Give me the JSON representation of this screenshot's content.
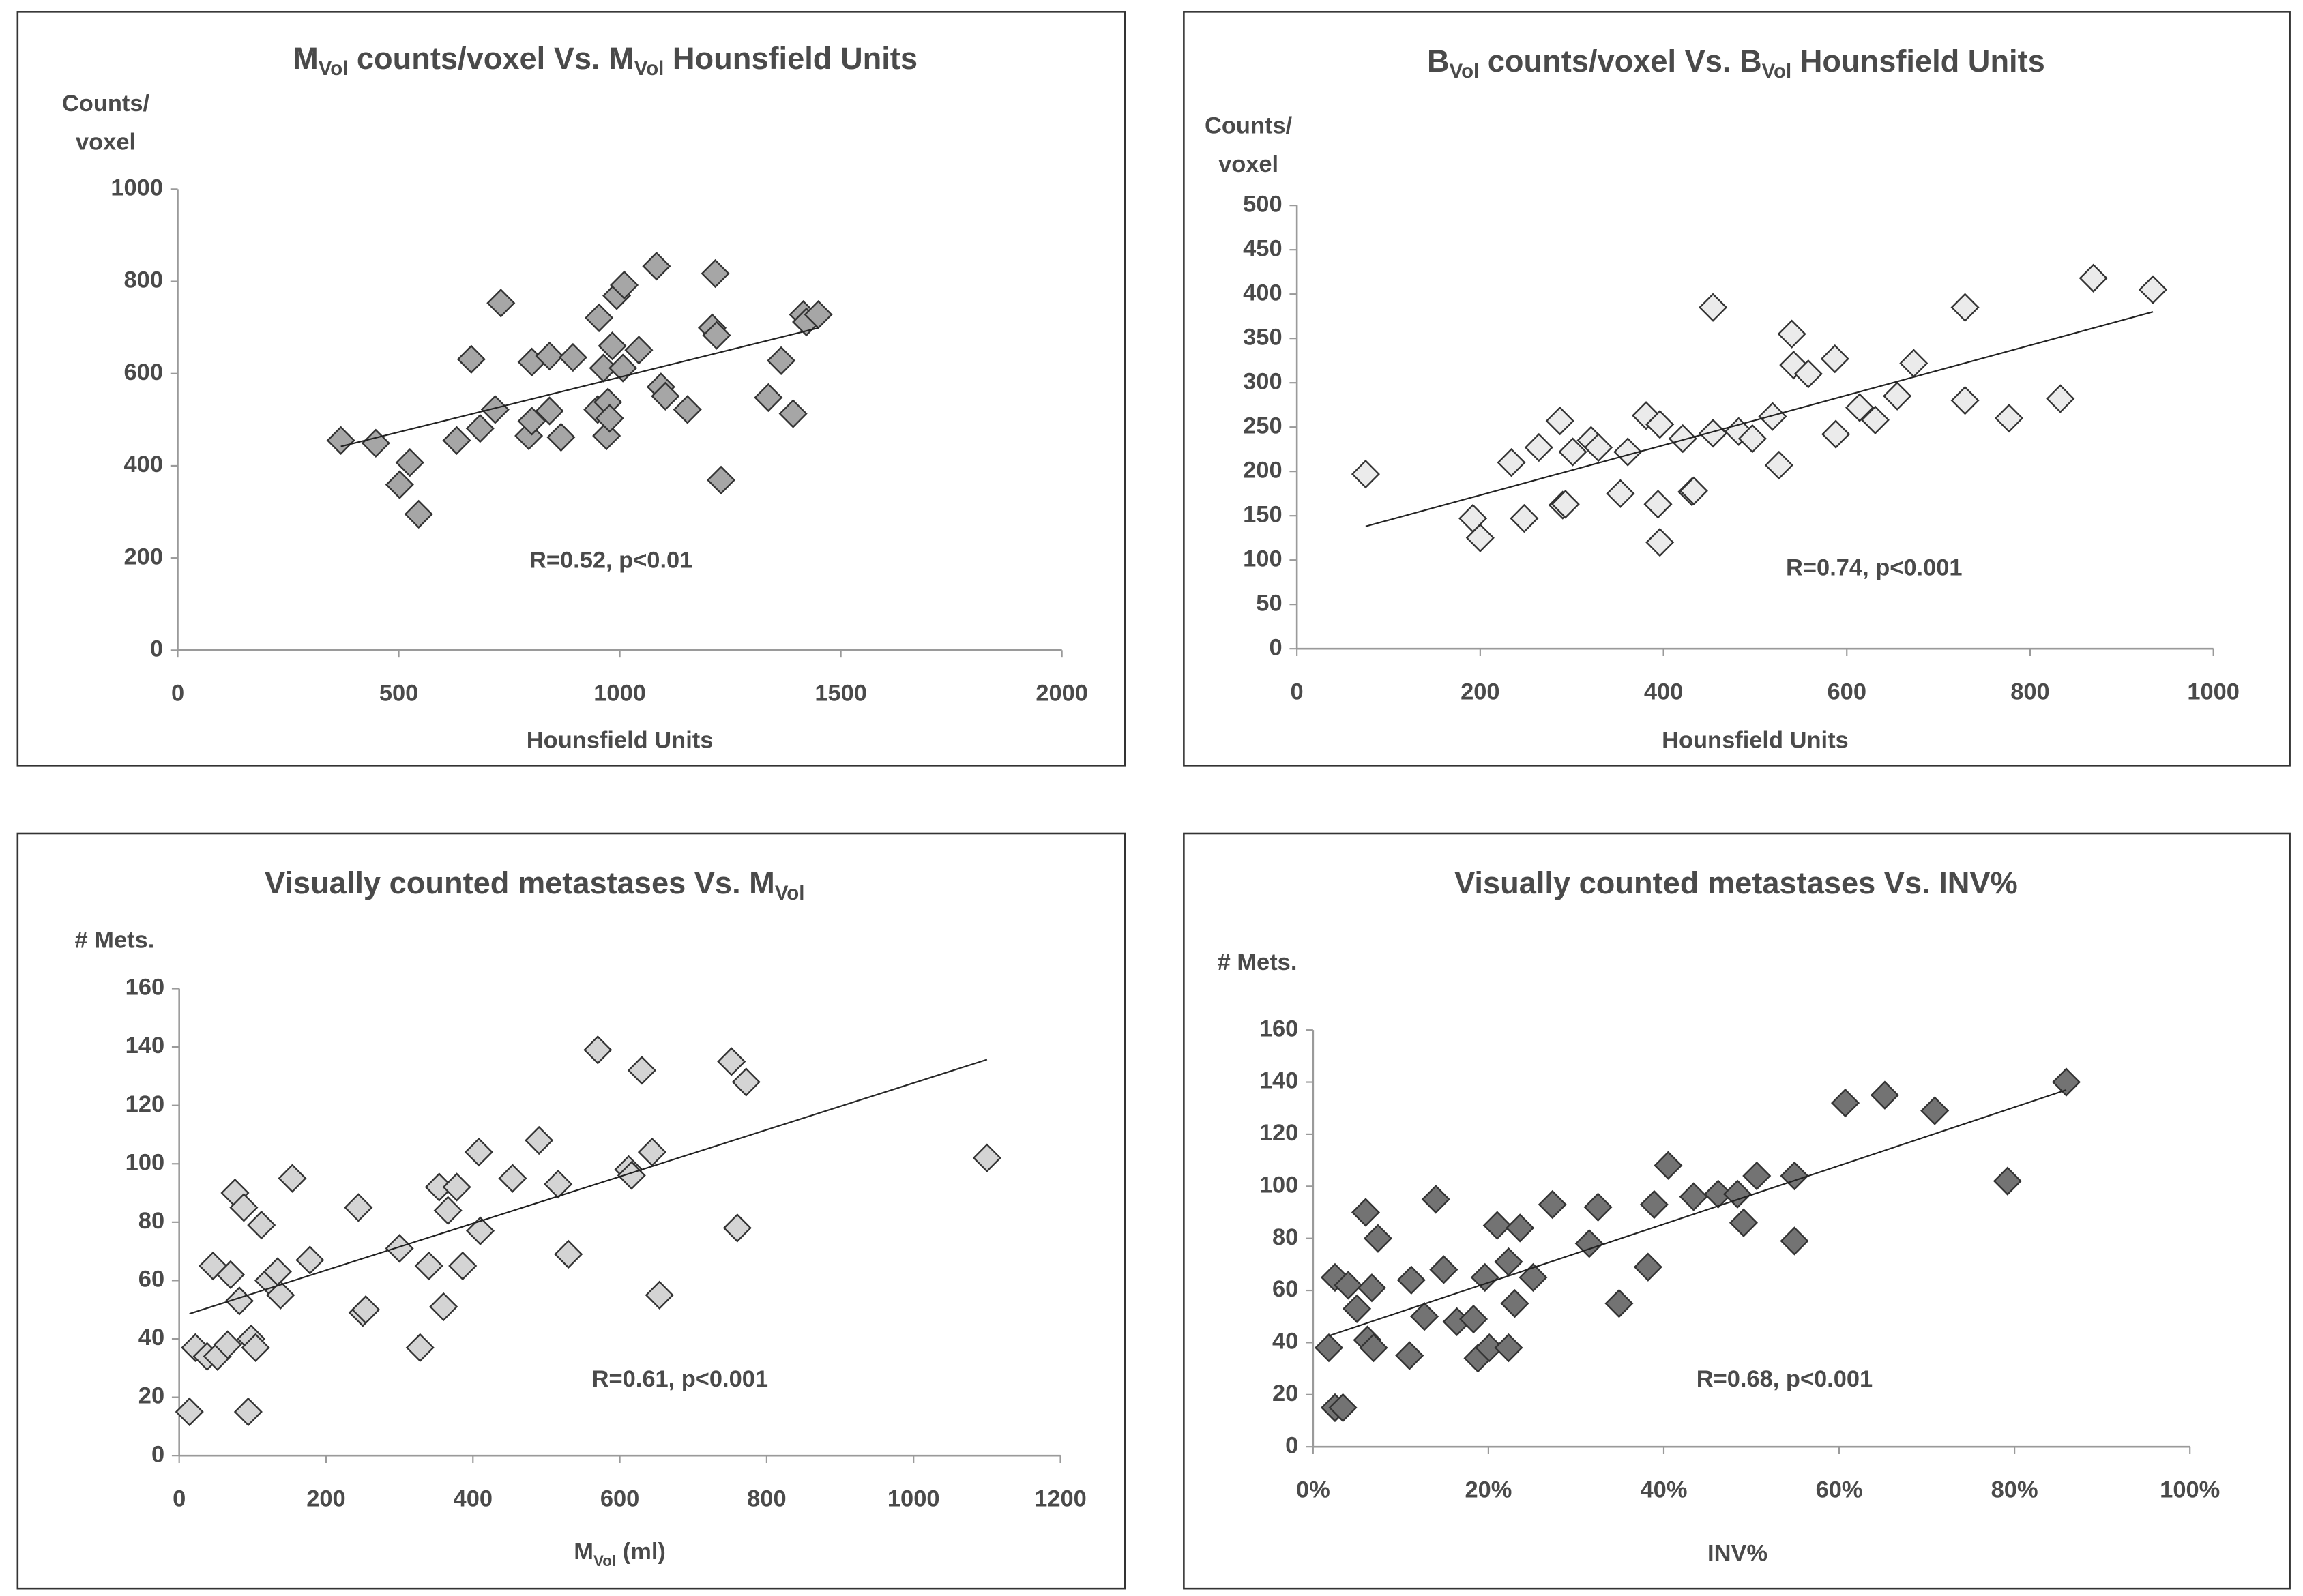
{
  "chart_data": [
    {
      "type": "scatter",
      "title": [
        {
          "text": "M"
        },
        {
          "text": "Vol",
          "sub": true
        },
        {
          "text": " counts/voxel Vs. M"
        },
        {
          "text": "Vol",
          "sub": true
        },
        {
          "text": "  Hounsfield Units"
        }
      ],
      "ylabel": [
        "Counts/",
        "voxel"
      ],
      "xlabel": [
        {
          "text": "Hounsfield Units"
        }
      ],
      "annotation": "R=0.52, p<0.01",
      "color": "#a6a6a6",
      "xlim": [
        0,
        2000
      ],
      "ylim": [
        0,
        1000
      ],
      "xticks": [
        0,
        500,
        1000,
        1500,
        2000
      ],
      "yticks": [
        0,
        200,
        400,
        600,
        800,
        1000
      ],
      "x": [
        369,
        448,
        502,
        525,
        545,
        631,
        664,
        684,
        718,
        731,
        794,
        801,
        801,
        841,
        841,
        867,
        894,
        953,
        950,
        963,
        970,
        973,
        977,
        983,
        993,
        1010,
        1007,
        1043,
        1083,
        1093,
        1103,
        1153,
        1209,
        1216,
        1219,
        1229,
        1336,
        1365,
        1392,
        1415,
        1422,
        1449
      ],
      "y": [
        455,
        449,
        359,
        407,
        295,
        455,
        631,
        481,
        522,
        753,
        465,
        497,
        625,
        638,
        519,
        462,
        635,
        721,
        522,
        612,
        465,
        538,
        503,
        660,
        769,
        792,
        612,
        651,
        833,
        571,
        551,
        522,
        699,
        817,
        683,
        369,
        548,
        628,
        513,
        728,
        712,
        728
      ],
      "trendline": {
        "x": [
          369,
          1449
        ],
        "y": [
          442,
          699
        ]
      }
    },
    {
      "type": "scatter",
      "title": [
        {
          "text": "B"
        },
        {
          "text": "Vol",
          "sub": true
        },
        {
          "text": " counts/voxel Vs. B"
        },
        {
          "text": "Vol",
          "sub": true
        },
        {
          "text": "  Hounsfield Units"
        }
      ],
      "ylabel": [
        "Counts/",
        "voxel"
      ],
      "xlabel": [
        {
          "text": "Hounsfield Units"
        }
      ],
      "annotation": "R=0.74, p<0.001",
      "color": "#ebebeb",
      "xlim": [
        0,
        1000
      ],
      "ylim": [
        0,
        500
      ],
      "xticks": [
        0,
        200,
        400,
        600,
        800,
        1000
      ],
      "yticks": [
        0,
        50,
        100,
        150,
        200,
        250,
        300,
        350,
        400,
        450,
        500
      ],
      "x": [
        75,
        192,
        200,
        234,
        248,
        264,
        287,
        290,
        293,
        301,
        321,
        329,
        353,
        361,
        381,
        396,
        394,
        396,
        421,
        431,
        433,
        454,
        454,
        482,
        497,
        519,
        526,
        540,
        542,
        558,
        587,
        588,
        614,
        631,
        655,
        673,
        729,
        729,
        777,
        833,
        869,
        934
      ],
      "y": [
        197,
        147,
        125,
        210,
        147,
        227,
        257,
        162,
        163,
        222,
        235,
        227,
        175,
        222,
        263,
        253,
        163,
        120,
        237,
        177,
        178,
        385,
        243,
        245,
        237,
        262,
        207,
        355,
        320,
        310,
        327,
        242,
        272,
        258,
        285,
        322,
        385,
        280,
        260,
        282,
        418,
        405
      ],
      "trendline": {
        "x": [
          75,
          934
        ],
        "y": [
          138,
          380
        ]
      }
    },
    {
      "type": "scatter",
      "title": [
        {
          "text": "Visually counted metastases Vs. M"
        },
        {
          "text": "Vol",
          "sub": true
        }
      ],
      "ylabel": [
        "# Mets."
      ],
      "xlabel": [
        {
          "text": "M"
        },
        {
          "text": "Vol",
          "sub": true
        },
        {
          "text": " (ml)"
        }
      ],
      "annotation": "R=0.61, p<0.001",
      "color": "#d4d4d4",
      "xlim": [
        0,
        1200
      ],
      "ylim": [
        0,
        160
      ],
      "xticks": [
        0,
        200,
        400,
        600,
        800,
        1000,
        1200
      ],
      "yticks": [
        0,
        20,
        40,
        60,
        80,
        100,
        120,
        140,
        160
      ],
      "x": [
        14,
        22,
        38,
        46,
        52,
        66,
        70,
        76,
        82,
        88,
        94,
        98,
        104,
        112,
        122,
        134,
        138,
        154,
        178,
        244,
        250,
        254,
        300,
        328,
        340,
        354,
        360,
        366,
        378,
        386,
        410,
        408,
        454,
        490,
        516,
        530,
        570,
        612,
        616,
        630,
        644,
        654,
        752,
        760,
        772,
        1100
      ],
      "y": [
        15,
        37,
        34,
        65,
        34,
        38,
        62,
        90,
        53,
        85,
        15,
        40,
        37,
        79,
        60,
        63,
        55,
        95,
        67,
        85,
        49,
        50,
        71,
        37,
        65,
        92,
        51,
        84,
        92,
        65,
        77,
        104,
        95,
        108,
        93,
        69,
        139,
        98,
        96,
        132,
        104,
        55,
        135,
        78,
        128,
        102
      ],
      "trendline": {
        "x": [
          14,
          1100
        ],
        "y": [
          48.6,
          135.7
        ]
      }
    },
    {
      "type": "scatter",
      "title": [
        {
          "text": "Visually counted metastases Vs. INV%"
        }
      ],
      "ylabel": [
        "# Mets."
      ],
      "xlabel": [
        {
          "text": "INV%"
        }
      ],
      "annotation": "R=0.68, p<0.001",
      "color": "#737373",
      "xlim": [
        0,
        100
      ],
      "ylim": [
        0,
        160
      ],
      "xticks": [
        {
          "value": 0,
          "label": "0%"
        },
        {
          "value": 20,
          "label": "20%"
        },
        {
          "value": 40,
          "label": "40%"
        },
        {
          "value": 60,
          "label": "60%"
        },
        {
          "value": 80,
          "label": "80%"
        },
        {
          "value": 100,
          "label": "100%"
        }
      ],
      "yticks": [
        0,
        20,
        40,
        60,
        80,
        100,
        120,
        140,
        160
      ],
      "x": [
        1.8,
        2.5,
        2.5,
        3.4,
        4,
        5,
        6,
        6.2,
        6.7,
        6.9,
        7.4,
        11,
        11.2,
        12.7,
        14,
        14.9,
        16.4,
        18.3,
        18.8,
        19.6,
        20.1,
        21,
        22.3,
        22.3,
        23,
        23.6,
        25.1,
        27.3,
        31.5,
        32.5,
        34.9,
        38.2,
        38.9,
        40.5,
        43.4,
        46.2,
        48.4,
        49.1,
        50.6,
        54.9,
        54.9,
        60.7,
        65.2,
        70.9,
        79.2,
        85.9
      ],
      "y": [
        38,
        15,
        65,
        15,
        62,
        53,
        90,
        41,
        61,
        38,
        80,
        35,
        64,
        50,
        95,
        68,
        48,
        49,
        34,
        65,
        38,
        85,
        38,
        71,
        55,
        84,
        65,
        93,
        78,
        92,
        55,
        69,
        93,
        108,
        96,
        97,
        97,
        86,
        104,
        104,
        79,
        132,
        135,
        129,
        102,
        140
      ],
      "trendline": {
        "x": [
          1.8,
          85.9
        ],
        "y": [
          42.6,
          137
        ]
      }
    }
  ]
}
